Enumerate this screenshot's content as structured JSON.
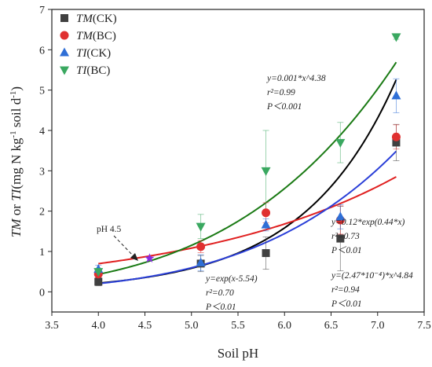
{
  "chart_data": {
    "type": "scatter",
    "xlabel": "Soil pH",
    "ylabel": "TM or TI(mg N kg⁻¹ soil d⁻¹)",
    "xlim": [
      3.5,
      7.5
    ],
    "ylim": [
      -0.5,
      7
    ],
    "x_ticks": [
      "3.5",
      "4.0",
      "4.5",
      "5.0",
      "5.5",
      "6.0",
      "6.5",
      "7.0",
      "7.5"
    ],
    "y_ticks": [
      "0",
      "1",
      "2",
      "3",
      "4",
      "5",
      "6",
      "7"
    ],
    "grid": false,
    "legend_position": "top-left",
    "series": [
      {
        "name": "TM(CK)",
        "name_italic": "TM",
        "name_rest": "(CK)",
        "marker": "square",
        "color": "#404040",
        "points": [
          {
            "x": 4.0,
            "y": 0.25,
            "err": 0.1
          },
          {
            "x": 5.1,
            "y": 0.7,
            "err": 0.2
          },
          {
            "x": 5.8,
            "y": 0.96,
            "err": 0.4
          },
          {
            "x": 6.6,
            "y": 1.32,
            "err": 0.8
          },
          {
            "x": 7.2,
            "y": 3.7,
            "err": 0.45
          }
        ],
        "fit": {
          "type": "exp",
          "a": 1,
          "b": 1,
          "c": -5.54
        }
      },
      {
        "name": "TM(BC)",
        "name_italic": "TM",
        "name_rest": "(BC)",
        "marker": "circle",
        "color": "#e03030",
        "points": [
          {
            "x": 4.0,
            "y": 0.44,
            "err": 0.1
          },
          {
            "x": 5.1,
            "y": 1.12,
            "err": 0.15
          },
          {
            "x": 5.8,
            "y": 1.96,
            "err": 0.25
          },
          {
            "x": 6.6,
            "y": 1.78,
            "err": 0.35
          },
          {
            "x": 7.2,
            "y": 3.84,
            "err": 0.3
          }
        ],
        "fit": {
          "type": "exp",
          "a": 0.12,
          "b": 0.44,
          "c": 0
        }
      },
      {
        "name": "TI(CK)",
        "name_italic": "TI",
        "name_rest": "(CK)",
        "marker": "triangle-up",
        "color": "#2f6fd6",
        "points": [
          {
            "x": 4.0,
            "y": 0.56,
            "err": 0.1
          },
          {
            "x": 5.1,
            "y": 0.72,
            "err": 0.2
          },
          {
            "x": 5.8,
            "y": 1.66,
            "err": 0.15
          },
          {
            "x": 6.6,
            "y": 1.86,
            "err": 0.3
          },
          {
            "x": 7.2,
            "y": 4.86,
            "err": 0.42
          }
        ],
        "fit": {
          "type": "power",
          "a": 0.000247,
          "b": 4.84
        }
      },
      {
        "name": "TI(BC)",
        "name_italic": "TI",
        "name_rest": "(BC)",
        "marker": "triangle-down",
        "color": "#3aa860",
        "points": [
          {
            "x": 4.0,
            "y": 0.5,
            "err": 0.08
          },
          {
            "x": 5.1,
            "y": 1.62,
            "err": 0.3
          },
          {
            "x": 5.8,
            "y": 3.0,
            "err": 1.0
          },
          {
            "x": 6.6,
            "y": 3.7,
            "err": 0.5
          },
          {
            "x": 7.2,
            "y": 6.32,
            "err": 0.06
          }
        ],
        "fit": {
          "type": "power",
          "a": 0.001,
          "b": 4.38
        }
      }
    ],
    "fit_colors": {
      "TM(CK)": "#000000",
      "TM(BC)": "#e02020",
      "TI(CK)": "#2a3fd8",
      "TI(BC)": "#1a7a14"
    },
    "intersection_marker": {
      "x": 4.55,
      "y": 0.83,
      "color": "#8a2be2"
    },
    "annotations": {
      "ph_label": "pH 4.5",
      "eq_tibc": {
        "l1": "y=0.001*x^4.38",
        "l2": "r²=0.99",
        "l3": "P＜0.001"
      },
      "eq_tmck": {
        "l1": "y=exp(x-5.54)",
        "l2": "r²=0.70",
        "l3": "P＜0.01"
      },
      "eq_tmbc": {
        "l1": "y=0.12*exp(0.44*x)",
        "l2": "r²=0.73",
        "l3": "P＜0.01"
      },
      "eq_tick": {
        "l1": "y=(2.47*10⁻⁴)*x^4.84",
        "l2": "r²=0.94",
        "l3": "P＜0.01"
      }
    }
  }
}
